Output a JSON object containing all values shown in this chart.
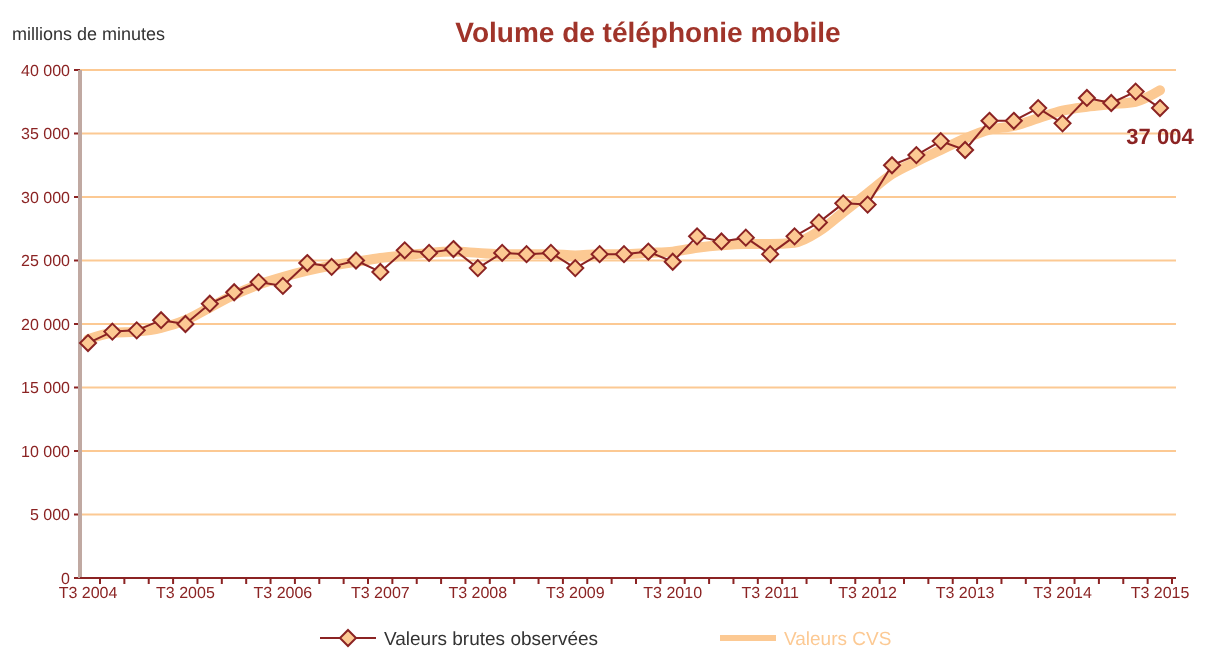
{
  "chart_data": {
    "type": "line",
    "title": "Volume de téléphonie mobile",
    "ylabel": "millions de minutes",
    "categories": [
      "T3 2004",
      null,
      null,
      null,
      "T3 2005",
      null,
      null,
      null,
      "T3 2006",
      null,
      null,
      null,
      "T3 2007",
      null,
      null,
      null,
      "T3 2008",
      null,
      null,
      null,
      "T3 2009",
      null,
      null,
      null,
      "T3 2010",
      null,
      null,
      null,
      "T3 2011",
      null,
      null,
      null,
      "T3 2012",
      null,
      null,
      null,
      "T3 2013",
      null,
      null,
      null,
      "T3 2014",
      null,
      null,
      null,
      "T3 2015"
    ],
    "series": [
      {
        "name": "Valeurs CVS",
        "color": "#fcc993",
        "marker": "none",
        "values": [
          18800,
          19300,
          19400,
          19700,
          20300,
          21300,
          22300,
          23100,
          23700,
          24200,
          24600,
          24900,
          25200,
          25400,
          25600,
          25700,
          25600,
          25500,
          25500,
          25500,
          25400,
          25500,
          25500,
          25600,
          25700,
          26000,
          26200,
          26300,
          26300,
          26400,
          27300,
          28800,
          30300,
          31800,
          32800,
          33700,
          34600,
          35300,
          35600,
          36200,
          36800,
          37100,
          37300,
          37500,
          38400
        ]
      },
      {
        "name": "Valeurs brutes observées",
        "color": "#8b2323",
        "marker": "diamond",
        "values": [
          18500,
          19400,
          19500,
          20300,
          20000,
          21600,
          22500,
          23300,
          23000,
          24800,
          24500,
          25000,
          24100,
          25800,
          25600,
          25900,
          24400,
          25600,
          25500,
          25600,
          24400,
          25500,
          25500,
          25700,
          24900,
          26900,
          26500,
          26800,
          25500,
          26900,
          28000,
          29500,
          29400,
          32500,
          33300,
          34400,
          33700,
          36000,
          36000,
          37000,
          35800,
          37800,
          37400,
          38300,
          37004
        ],
        "value_labels": [
          null,
          null,
          null,
          null,
          null,
          null,
          null,
          null,
          null,
          null,
          null,
          null,
          null,
          null,
          null,
          null,
          null,
          null,
          null,
          null,
          null,
          null,
          null,
          null,
          null,
          null,
          null,
          null,
          null,
          null,
          null,
          null,
          null,
          null,
          null,
          null,
          null,
          null,
          null,
          null,
          null,
          null,
          null,
          null,
          "37 004"
        ]
      }
    ],
    "ylim": [
      0,
      40000
    ],
    "yticks": [
      {
        "value": 0,
        "label": "0"
      },
      {
        "value": 5000,
        "label": "5 000"
      },
      {
        "value": 10000,
        "label": "10 000"
      },
      {
        "value": 15000,
        "label": "15 000"
      },
      {
        "value": 20000,
        "label": "20 000"
      },
      {
        "value": 25000,
        "label": "25 000"
      },
      {
        "value": 30000,
        "label": "30 000"
      },
      {
        "value": 35000,
        "label": "35 000"
      },
      {
        "value": 40000,
        "label": "40 000"
      }
    ],
    "grid": "y",
    "legend": "bottom"
  }
}
